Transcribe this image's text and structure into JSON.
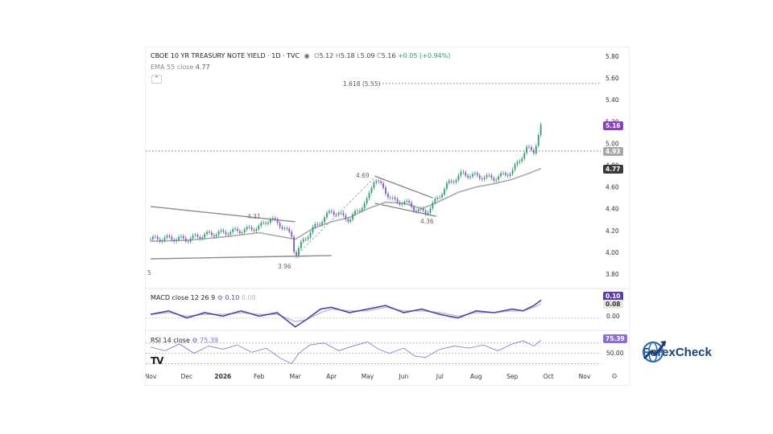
{
  "header": {
    "title": "CBOE 10 YR TREASURY NOTE YIELD · 1D · TVC",
    "o_label": "O",
    "o_value": "5.12",
    "h_label": "H",
    "h_value": "5.18",
    "l_label": "L",
    "l_value": "5.09",
    "c_label": "C",
    "c_value": "5.16",
    "change": "+0.05 (+0.94%)",
    "ema_label": "EMA 55 close",
    "ema_value": "4.77",
    "collapse_glyph": "^"
  },
  "annotations": {
    "fib": "1.618 (5.55)",
    "peak1": "4.31",
    "low1": "3.96",
    "peak2": "4.69",
    "low2": "4.36",
    "left_edge": "5"
  },
  "price_badges": {
    "last": "5.16",
    "level": "4.93",
    "ema": "4.77"
  },
  "macd": {
    "label": "MACD close 12 26 9",
    "value1": "0.10",
    "value2": "0.08",
    "badge1": "0.10",
    "badge2": "0.08",
    "zero_tick": "0.00"
  },
  "rsi": {
    "label": "RSI 14 close",
    "value": "75.39",
    "badge": "75.39",
    "mid_tick": "50.00"
  },
  "logo_mark": "TV",
  "brand": {
    "name": "ForexCheck",
    "icon": "globe-arrow-icon"
  },
  "colors": {
    "up": "#2e9e6a",
    "down": "#7b5cc4",
    "ema": "#a8a8a8",
    "macd": "#5b3fa6",
    "signal": "#c0b6dd",
    "rsi": "#7f70c8",
    "badge_last": "#8b3fc4",
    "badge_level": "#9e9e9e",
    "badge_ema": "#3a3a3a"
  },
  "chart_data": {
    "type": "candlestick",
    "title": "CBOE 10 YR TREASURY NOTE YIELD · 1D · TVC",
    "y_ticks": [
      "5.80",
      "5.60",
      "5.40",
      "5.20",
      "5.00",
      "4.80",
      "4.60",
      "4.40",
      "4.20",
      "4.00",
      "3.80"
    ],
    "ylim": [
      3.8,
      5.8
    ],
    "x_ticks": [
      "Nov",
      "Dec",
      "2026",
      "Feb",
      "Mar",
      "Apr",
      "May",
      "Jun",
      "Jul",
      "Aug",
      "Sep",
      "Oct",
      "Nov"
    ],
    "x_tick_month_index": [
      0,
      1,
      2,
      3,
      4,
      5,
      6,
      7,
      8,
      9,
      10,
      11,
      12
    ],
    "price_series": {
      "name": "close",
      "x_month": [
        0,
        0.5,
        1,
        1.5,
        2,
        2.5,
        3,
        3.3,
        3.6,
        3.9,
        4.0,
        4.2,
        4.5,
        5,
        5.5,
        6,
        6.2,
        6.5,
        6.8,
        7,
        7.3,
        7.6,
        7.9,
        8.2,
        8.6,
        9,
        9.5,
        10,
        10.2,
        10.4,
        10.6,
        10.8
      ],
      "close": [
        4.12,
        4.13,
        4.12,
        4.16,
        4.18,
        4.2,
        4.23,
        4.31,
        4.25,
        4.15,
        3.96,
        4.1,
        4.22,
        4.38,
        4.3,
        4.48,
        4.69,
        4.55,
        4.45,
        4.47,
        4.4,
        4.36,
        4.48,
        4.62,
        4.72,
        4.7,
        4.68,
        4.74,
        4.85,
        4.95,
        4.93,
        5.16
      ]
    },
    "ema_series": {
      "name": "EMA 55 close",
      "x_month": [
        0,
        1,
        2,
        3,
        4,
        4.5,
        5,
        5.5,
        6,
        6.5,
        7,
        7.5,
        8,
        8.5,
        9,
        9.5,
        10,
        10.5,
        10.8
      ],
      "values": [
        4.1,
        4.11,
        4.14,
        4.18,
        4.12,
        4.22,
        4.28,
        4.32,
        4.4,
        4.46,
        4.45,
        4.4,
        4.47,
        4.55,
        4.6,
        4.63,
        4.67,
        4.73,
        4.77
      ]
    },
    "horizontal_levels": [
      {
        "label": "1.618 (5.55)",
        "value": 5.55
      },
      {
        "label": "4.93",
        "value": 4.93
      }
    ],
    "trendlines": [
      {
        "from": [
          0,
          4.42
        ],
        "to": [
          4.0,
          4.28
        ]
      },
      {
        "from": [
          0,
          3.94
        ],
        "to": [
          5.0,
          3.97
        ]
      },
      {
        "from": [
          6.2,
          4.7
        ],
        "to": [
          7.8,
          4.5
        ]
      },
      {
        "from": [
          6.2,
          4.45
        ],
        "to": [
          7.9,
          4.33
        ]
      }
    ],
    "macd": {
      "label": "MACD close 12 26 9",
      "x_month": [
        0,
        0.5,
        1,
        1.5,
        2,
        2.5,
        3,
        3.5,
        4,
        4.3,
        4.7,
        5,
        5.5,
        6,
        6.5,
        7,
        7.5,
        8,
        8.5,
        9,
        9.5,
        10,
        10.3,
        10.6,
        10.8
      ],
      "macd": [
        0.02,
        0.04,
        0.0,
        0.03,
        0.01,
        0.04,
        0.01,
        0.03,
        -0.05,
        -0.01,
        0.05,
        0.06,
        0.03,
        0.05,
        0.07,
        0.03,
        0.05,
        0.02,
        0.0,
        0.04,
        0.03,
        0.05,
        0.04,
        0.07,
        0.1
      ],
      "signal": [
        0.02,
        0.03,
        0.01,
        0.02,
        0.02,
        0.03,
        0.02,
        0.02,
        -0.02,
        -0.01,
        0.03,
        0.05,
        0.04,
        0.04,
        0.06,
        0.04,
        0.04,
        0.03,
        0.01,
        0.03,
        0.03,
        0.04,
        0.04,
        0.06,
        0.08
      ],
      "range": [
        -0.06,
        0.12
      ]
    },
    "rsi": {
      "label": "RSI 14 close",
      "x_month": [
        0,
        0.4,
        0.8,
        1.2,
        1.6,
        2,
        2.4,
        2.8,
        3.2,
        3.6,
        3.9,
        4.1,
        4.4,
        4.8,
        5.2,
        5.6,
        6,
        6.3,
        6.6,
        7,
        7.3,
        7.6,
        8,
        8.4,
        8.8,
        9.2,
        9.6,
        10,
        10.3,
        10.6,
        10.8
      ],
      "values": [
        62,
        55,
        68,
        50,
        64,
        58,
        66,
        52,
        60,
        40,
        30,
        50,
        66,
        70,
        55,
        64,
        72,
        58,
        50,
        60,
        45,
        42,
        58,
        64,
        60,
        66,
        55,
        68,
        74,
        64,
        75.39
      ],
      "range": [
        20,
        85
      ]
    }
  }
}
